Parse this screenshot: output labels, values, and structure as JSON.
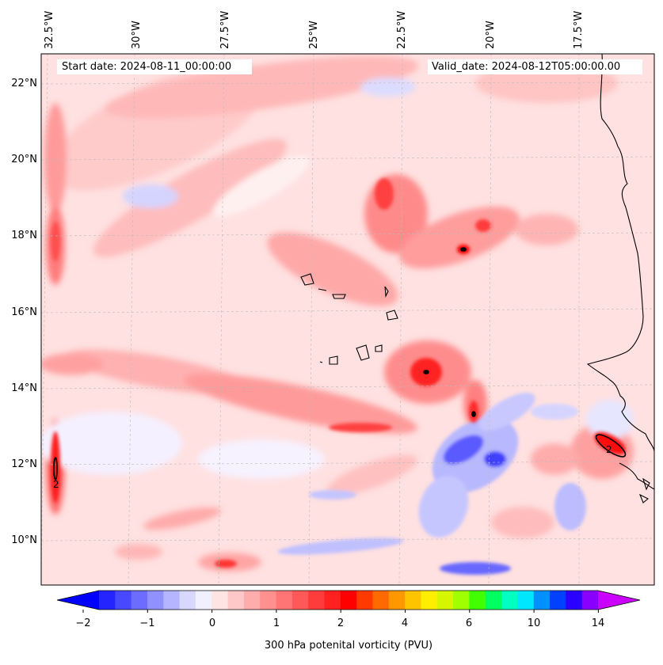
{
  "header": {
    "start_date": "Start date: 2024-08-11_00:00:00",
    "valid_date": "Valid_date: 2024-08-12T05:00:00.00"
  },
  "map": {
    "longitude_labels": [
      "32.5°W",
      "30°W",
      "27.5°W",
      "25°W",
      "22.5°W",
      "20°W",
      "17.5°W"
    ],
    "latitude_labels": [
      "22°N",
      "20°N",
      "18°N",
      "16°N",
      "14°N",
      "12°N",
      "10°N"
    ],
    "contour_labels": [
      "2",
      "2"
    ],
    "background_color": "#ffe1e1"
  },
  "colorbar": {
    "title": "300 hPa potenital vorticity (PVU)",
    "tick_labels": [
      "−2",
      "−1",
      "0",
      "1",
      "2",
      "4",
      "6",
      "10",
      "14"
    ],
    "colors": [
      "#0000ff",
      "#2424ff",
      "#4848ff",
      "#6c6cff",
      "#9090ff",
      "#b4b4ff",
      "#d8d8ff",
      "#f0f0ff",
      "#ffe4e4",
      "#ffc8c8",
      "#ffacac",
      "#ff9090",
      "#ff7474",
      "#ff5858",
      "#ff3c3c",
      "#ff2020",
      "#ff0000",
      "#ff3a00",
      "#ff6a00",
      "#ff9800",
      "#ffc400",
      "#ffee00",
      "#d6f500",
      "#a0ff00",
      "#40ff00",
      "#00ff60",
      "#00ffc0",
      "#00e6ff",
      "#0090ff",
      "#0040ff",
      "#2a00ff",
      "#8a00ff",
      "#cc00ff"
    ]
  }
}
